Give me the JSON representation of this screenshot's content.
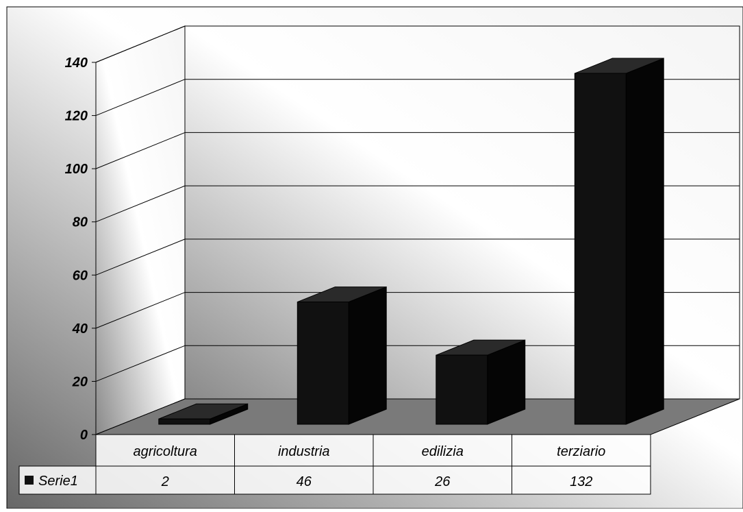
{
  "chart_data": {
    "type": "bar",
    "style": "3d",
    "categories": [
      "agricoltura",
      "industria",
      "edilizia",
      "terziario"
    ],
    "series": [
      {
        "name": "Serie1",
        "values": [
          2,
          46,
          26,
          132
        ],
        "color": "#111111"
      }
    ],
    "title": "",
    "xlabel": "",
    "ylabel": "",
    "ylim": [
      0,
      140
    ],
    "yticks": [
      0,
      20,
      40,
      60,
      80,
      100,
      120,
      140
    ],
    "grid": true,
    "legend": "data-table-left",
    "data_table": true
  },
  "colors": {
    "background_dark": "#6e6e6e",
    "background_light": "#ffffff",
    "floor": "#7a7a7a",
    "bar": "#111111",
    "bar_side": "#050505",
    "bar_top": "#2a2a2a"
  }
}
